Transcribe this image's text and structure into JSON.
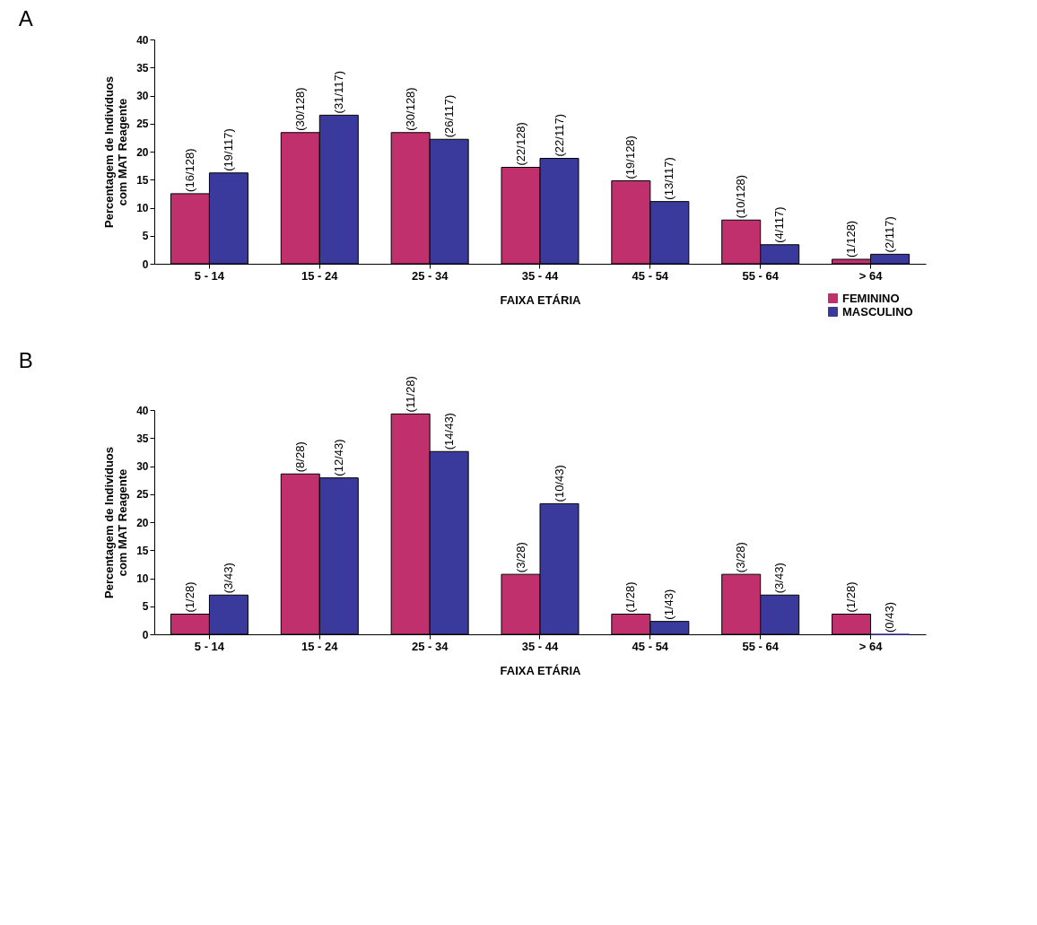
{
  "chart_data": [
    {
      "type": "bar",
      "title": "A",
      "xlabel": "FAIXA ETÁRIA",
      "ylabel": "Percentagem de Indivíduos com MAT Reagente",
      "categories": [
        "5 - 14",
        "15 - 24",
        "25 - 34",
        "35 - 44",
        "45 - 54",
        "55 - 64",
        "> 64"
      ],
      "ylim": [
        0,
        40
      ],
      "yticks": [
        0,
        5,
        10,
        15,
        20,
        25,
        30,
        35,
        40
      ],
      "grid": false,
      "legend": "bottom right",
      "series": [
        {
          "name": "FEMININO",
          "color": "#c0306c",
          "values": [
            12.5,
            23.4,
            23.4,
            17.2,
            14.8,
            7.8,
            0.8
          ],
          "value_labels": [
            "(16/128)",
            "(30/128)",
            "(30/128)",
            "(22/128)",
            "(19/128)",
            "(10/128)",
            "(1/128)"
          ]
        },
        {
          "name": "MASCULINO",
          "color": "#3a3a9c",
          "values": [
            16.2,
            26.5,
            22.2,
            18.8,
            11.1,
            3.4,
            1.7
          ],
          "value_labels": [
            "(19/117)",
            "(31/117)",
            "(26/117)",
            "(22/117)",
            "(13/117)",
            "(4/117)",
            "(2/117)"
          ]
        }
      ]
    },
    {
      "type": "bar",
      "title": "B",
      "xlabel": "FAIXA ETÁRIA",
      "ylabel": "Percentagem de Indivíduos com MAT Reagente",
      "categories": [
        "5 - 14",
        "15 - 24",
        "25 - 34",
        "35 - 44",
        "45 - 54",
        "55 - 64",
        "> 64"
      ],
      "ylim": [
        0,
        40
      ],
      "yticks": [
        0,
        5,
        10,
        15,
        20,
        25,
        30,
        35,
        40
      ],
      "grid": false,
      "legend": "bottom right",
      "series": [
        {
          "name": "FEMININO",
          "color": "#c0306c",
          "values": [
            3.6,
            28.6,
            39.3,
            10.7,
            3.6,
            10.7,
            3.6
          ],
          "value_labels": [
            "(1/28)",
            "(8/28)",
            "(11/28)",
            "(3/28)",
            "(1/28)",
            "(3/28)",
            "(1/28)"
          ]
        },
        {
          "name": "MASCULINO",
          "color": "#3a3a9c",
          "values": [
            7.0,
            27.9,
            32.6,
            23.3,
            2.3,
            7.0,
            0
          ],
          "value_labels": [
            "(3/43)",
            "(12/43)",
            "(14/43)",
            "(10/43)",
            "(1/43)",
            "(3/43)",
            "(0/43)"
          ]
        }
      ]
    }
  ]
}
